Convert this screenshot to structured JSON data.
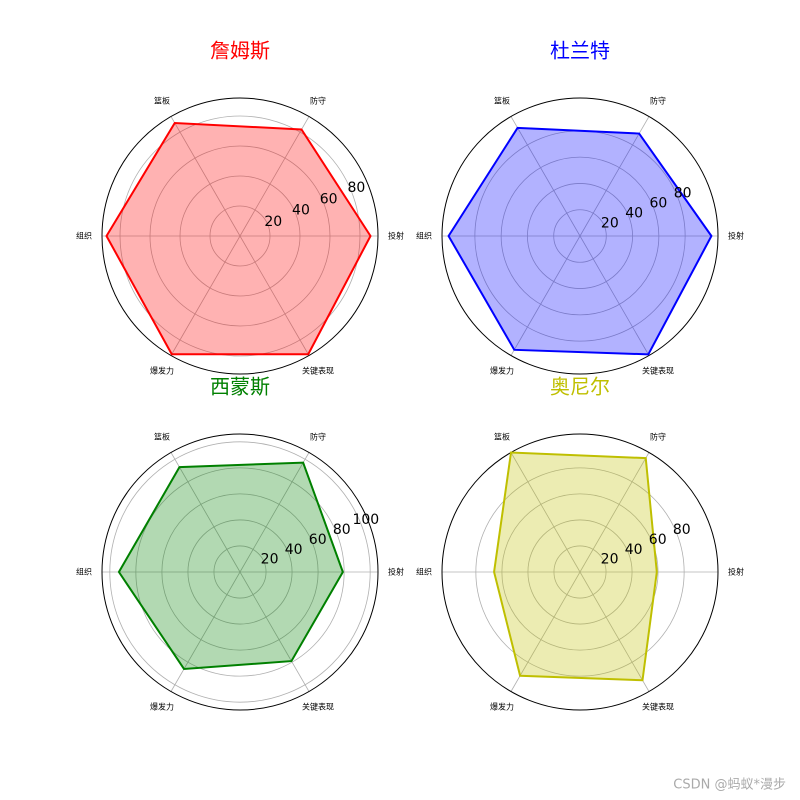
{
  "chart_data": [
    {
      "type": "radar",
      "title": "詹姆斯",
      "color": "#ff0000",
      "categories": [
        "投射",
        "防守",
        "篮板",
        "组织",
        "爆发力",
        "关键表现"
      ],
      "values": [
        87,
        82,
        87,
        89,
        91,
        91
      ],
      "rlim": [
        0,
        92
      ],
      "rticks": [
        20,
        40,
        60,
        80
      ],
      "grid": true
    },
    {
      "type": "radar",
      "title": "杜兰特",
      "color": "#0000ff",
      "categories": [
        "投射",
        "防守",
        "篮板",
        "组织",
        "爆发力",
        "关键表现"
      ],
      "values": [
        100,
        90,
        95,
        100,
        100,
        104
      ],
      "rlim": [
        0,
        105
      ],
      "rticks": [
        20,
        40,
        60,
        80
      ],
      "grid": true
    },
    {
      "type": "radar",
      "title": "西蒙斯",
      "color": "#008000",
      "categories": [
        "投射",
        "防守",
        "篮板",
        "组织",
        "爆发力",
        "关键表现"
      ],
      "values": [
        79,
        97,
        93,
        93,
        86,
        79
      ],
      "rlim": [
        0,
        106
      ],
      "rticks": [
        20,
        40,
        60,
        80,
        100
      ],
      "grid": true
    },
    {
      "type": "radar",
      "title": "奥尼尔",
      "color": "#bfbf00",
      "categories": [
        "投射",
        "防守",
        "篮板",
        "组织",
        "爆发力",
        "关键表现"
      ],
      "values": [
        59,
        101,
        106,
        66,
        92,
        96
      ],
      "rlim": [
        0,
        106
      ],
      "rticks": [
        20,
        40,
        60,
        80
      ],
      "grid": true
    }
  ],
  "watermark": "CSDN @蚂蚁*漫步"
}
